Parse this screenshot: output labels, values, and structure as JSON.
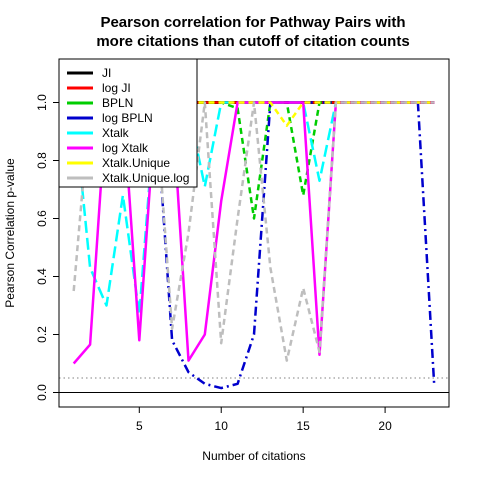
{
  "chart_data": {
    "type": "line",
    "title": [
      "Pearson correlation for Pathway Pairs with",
      "more citations than cutoff of citation counts"
    ],
    "xlabel": "Number of citations",
    "ylabel": "Pearson Correlation p-value",
    "xlim": [
      0.1,
      23.9
    ],
    "ylim": [
      -0.05,
      1.15
    ],
    "xticks": [
      5,
      10,
      15,
      20
    ],
    "yticks": [
      0.0,
      0.2,
      0.4,
      0.6,
      0.8,
      1.0
    ],
    "ytick_labels": [
      "0.0",
      "0.2",
      "0.4",
      "0.6",
      "0.8",
      "1.0"
    ],
    "hlines": [
      {
        "y": 0.05,
        "color": "#808080",
        "style": "dotted"
      },
      {
        "y": 0.0,
        "color": "#000000",
        "style": "solid"
      }
    ],
    "legend_position": "top-left",
    "series": [
      {
        "name": "JI",
        "color": "#000000",
        "dash": "solid",
        "width": 3,
        "x": [
          8,
          9,
          10,
          11,
          12,
          13,
          14,
          15,
          16,
          17,
          18,
          19,
          20,
          21,
          22,
          23
        ],
        "y": [
          1,
          1,
          1,
          1,
          1,
          1,
          1,
          1,
          1,
          1,
          1,
          1,
          1,
          1,
          1,
          1
        ]
      },
      {
        "name": "log JI",
        "color": "#ff0000",
        "dash": "solid",
        "width": 2.5,
        "x": [
          8,
          9,
          10,
          11,
          12,
          13,
          14,
          15,
          16,
          17,
          18,
          19,
          20,
          21,
          22,
          23
        ],
        "y": [
          1,
          1,
          1,
          1,
          1,
          1,
          1,
          1,
          1,
          1,
          1,
          1,
          1,
          1,
          1,
          1
        ]
      },
      {
        "name": "BPLN",
        "color": "#00cd00",
        "dash": "dashed",
        "width": 2.5,
        "x": [
          8,
          9,
          10,
          11,
          12,
          13,
          14,
          15,
          16,
          17,
          18,
          19,
          20,
          21,
          22,
          23
        ],
        "y": [
          1,
          1,
          1,
          0.98,
          0.6,
          1,
          1,
          0.68,
          1,
          1,
          1,
          1,
          1,
          1,
          1,
          1
        ]
      },
      {
        "name": "log BPLN",
        "color": "#0000cd",
        "dash": "dotdash",
        "width": 2.5,
        "x": [
          1,
          2,
          3,
          4,
          5,
          6,
          7,
          8,
          9,
          10,
          11,
          12,
          13,
          14,
          15,
          16,
          17,
          18,
          19,
          20,
          21,
          22,
          23
        ],
        "y": [
          1,
          1,
          1,
          1,
          1,
          1,
          0.18,
          0.07,
          0.03,
          0.015,
          0.03,
          0.2,
          1,
          1,
          1,
          1,
          1,
          1,
          1,
          1,
          1,
          1,
          0.02
        ]
      },
      {
        "name": "Xtalk",
        "color": "#00ffff",
        "dash": "longdash",
        "width": 2.5,
        "x": [
          1,
          2,
          3,
          4,
          5,
          6,
          7,
          8,
          9,
          10,
          11,
          12,
          13,
          14,
          15,
          16,
          17
        ],
        "y": [
          1,
          0.43,
          0.3,
          0.68,
          0.27,
          1,
          1,
          0.98,
          0.71,
          1,
          1,
          1,
          1,
          1,
          1,
          0.73,
          1
        ]
      },
      {
        "name": "log Xtalk",
        "color": "#ff00ff",
        "dash": "solid",
        "width": 2.5,
        "x": [
          1,
          2,
          3,
          4,
          5,
          6,
          7,
          8,
          9,
          10,
          11,
          12,
          13,
          14,
          15,
          16,
          17,
          18,
          19,
          20,
          21,
          22,
          23
        ],
        "y": [
          0.1,
          0.165,
          1,
          1,
          0.18,
          1,
          1,
          0.11,
          0.2,
          0.66,
          1,
          1,
          1,
          1,
          1,
          0.13,
          1,
          1,
          1,
          1,
          1,
          1,
          1
        ]
      },
      {
        "name": "Xtalk.Unique",
        "color": "#ffff00",
        "dash": "dashed",
        "width": 2.5,
        "x": [
          8,
          9,
          10,
          11,
          12,
          13,
          14,
          15,
          16,
          17,
          18,
          19,
          20,
          21,
          22,
          23
        ],
        "y": [
          1,
          1,
          1,
          1,
          1,
          1,
          0.92,
          1,
          1,
          1,
          1,
          1,
          1,
          1,
          1,
          1
        ]
      },
      {
        "name": "Xtalk.Unique.log",
        "color": "#bebebe",
        "dash": "dashed",
        "width": 2.5,
        "x": [
          1,
          2,
          3,
          4,
          5,
          6,
          7,
          8,
          9,
          10,
          11,
          12,
          13,
          14,
          15,
          16,
          17,
          18,
          19,
          20,
          21,
          22,
          23
        ],
        "y": [
          0.35,
          1,
          1,
          1,
          1,
          1,
          0.22,
          0.55,
          1,
          0.17,
          0.6,
          1,
          0.43,
          0.11,
          0.36,
          0.14,
          1,
          1,
          1,
          1,
          1,
          1,
          1
        ]
      }
    ]
  }
}
